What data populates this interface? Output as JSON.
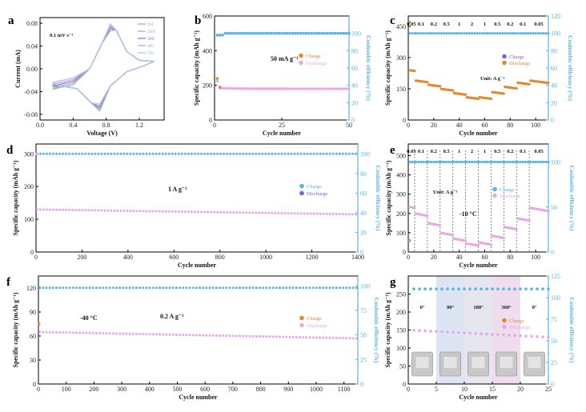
{
  "figure_panels": [
    "a",
    "b",
    "c",
    "d",
    "e",
    "f",
    "g"
  ],
  "chart_data": [
    {
      "id": "a",
      "type": "line",
      "xlabel": "Voltage (V)",
      "ylabel": "Current (mA)",
      "xlim": [
        0,
        1.5
      ],
      "ylim": [
        -0.09,
        0.09
      ],
      "xticks": [
        "0.0",
        "0.4",
        "0.8",
        "1.2"
      ],
      "yticks": [
        "-0.08",
        "-0.04",
        "0.00",
        "0.04",
        "0.08"
      ],
      "annotation": "0.1 mV s⁻¹",
      "legend": [
        "1st",
        "2nd",
        "3rd",
        "4th",
        "5th"
      ],
      "colors": [
        "#7ec8a0",
        "#b9a8dc",
        "#7a89c9",
        "#d6a0d8",
        "#a8c8e8"
      ]
    },
    {
      "id": "b",
      "type": "scatter",
      "xlabel": "Cycle number",
      "ylabel": "Specific capacity (mAh g⁻¹)",
      "y2label": "Coulombic efficiency (%)",
      "xlim": [
        0,
        50
      ],
      "ylim": [
        0,
        600
      ],
      "y2lim": [
        0,
        120
      ],
      "xticks": [
        "0",
        "25",
        "50"
      ],
      "yticks": [
        "0",
        "200",
        "400",
        "600"
      ],
      "y2ticks": [
        "0",
        "20",
        "40",
        "60",
        "80",
        "100"
      ],
      "annotation": "50 mA g⁻¹",
      "legend": [
        "Charge",
        "Discharge"
      ],
      "charge_first": 240,
      "charge_plateau": 185,
      "discharge_first": 225,
      "discharge_plateau": 180,
      "efficiency": 100
    },
    {
      "id": "c",
      "type": "scatter",
      "xlabel": "Cycle number",
      "ylabel": "Specific capacity (mAh g⁻¹)",
      "y2label": "Coulombic efficiency (%)",
      "xlim": [
        0,
        110
      ],
      "ylim": [
        0,
        500
      ],
      "y2lim": [
        0,
        120
      ],
      "xticks": [
        "0",
        "20",
        "40",
        "60",
        "80",
        "100"
      ],
      "yticks": [
        "0",
        "150",
        "300",
        "450"
      ],
      "y2ticks": [
        "0",
        "20",
        "40",
        "60",
        "80",
        "100",
        "120"
      ],
      "rates": [
        "0.05",
        "0.1",
        "0.2",
        "0.5",
        "1",
        "2",
        "1",
        "0.5",
        "0.2",
        "0.1",
        "0.05"
      ],
      "unit": "Unit: A g⁻¹",
      "legend": [
        "Charge",
        "Discharge"
      ],
      "steps": [
        {
          "from": 0,
          "to": 5,
          "value": 240
        },
        {
          "from": 5,
          "to": 15,
          "value": 190
        },
        {
          "from": 15,
          "to": 25,
          "value": 170
        },
        {
          "from": 25,
          "to": 35,
          "value": 150
        },
        {
          "from": 35,
          "to": 45,
          "value": 130
        },
        {
          "from": 45,
          "to": 55,
          "value": 110
        },
        {
          "from": 55,
          "to": 65,
          "value": 110
        },
        {
          "from": 65,
          "to": 75,
          "value": 135
        },
        {
          "from": 75,
          "to": 85,
          "value": 160
        },
        {
          "from": 85,
          "to": 95,
          "value": 180
        },
        {
          "from": 95,
          "to": 110,
          "value": 190
        }
      ],
      "efficiency": 100
    },
    {
      "id": "d",
      "type": "scatter",
      "xlabel": "Cycle number",
      "ylabel": "Specific capacity (mAh g⁻¹)",
      "y2label": "Coulombic efficiency (%)",
      "xlim": [
        0,
        1400
      ],
      "ylim": [
        0,
        330
      ],
      "y2lim": [
        0,
        110
      ],
      "xticks": [
        "0",
        "200",
        "400",
        "600",
        "800",
        "1000",
        "1200",
        "1400"
      ],
      "yticks": [
        "0",
        "100",
        "200",
        "300"
      ],
      "y2ticks": [
        "0",
        "20",
        "40",
        "60",
        "80",
        "100"
      ],
      "annotation": "1 A g⁻¹",
      "legend": [
        "Charge",
        "Discharge"
      ],
      "first": 300,
      "start": 130,
      "end": 115,
      "efficiency": 100
    },
    {
      "id": "e",
      "type": "scatter",
      "xlabel": "Cycle number",
      "ylabel": "Specific capacity (mAh g⁻¹)",
      "y2label": "Coulombic efficiency (%)",
      "xlim": [
        0,
        110
      ],
      "ylim": [
        0,
        560
      ],
      "y2lim": [
        0,
        120
      ],
      "xticks": [
        "0",
        "20",
        "40",
        "60",
        "80",
        "100"
      ],
      "yticks": [
        "0",
        "100",
        "200",
        "300",
        "400",
        "500"
      ],
      "y2ticks": [
        "0",
        "50",
        "100"
      ],
      "rates": [
        "0.05",
        "0.1",
        "0.2",
        "0.5",
        "1",
        "2",
        "1",
        "0.5",
        "0.2",
        "0.1",
        "0.05"
      ],
      "unit": "Unit: A g⁻¹",
      "annotation": "-10 °C",
      "legend": [
        "Charge",
        "Discharge"
      ],
      "steps": [
        {
          "from": 0,
          "to": 5,
          "value": 235
        },
        {
          "from": 5,
          "to": 15,
          "value": 200
        },
        {
          "from": 15,
          "to": 25,
          "value": 150
        },
        {
          "from": 25,
          "to": 35,
          "value": 100
        },
        {
          "from": 35,
          "to": 45,
          "value": 70
        },
        {
          "from": 45,
          "to": 55,
          "value": 45
        },
        {
          "from": 55,
          "to": 65,
          "value": 50
        },
        {
          "from": 65,
          "to": 75,
          "value": 85
        },
        {
          "from": 75,
          "to": 85,
          "value": 130
        },
        {
          "from": 85,
          "to": 95,
          "value": 175
        },
        {
          "from": 95,
          "to": 110,
          "value": 230
        }
      ],
      "efficiency": 100
    },
    {
      "id": "f",
      "type": "scatter",
      "xlabel": "Cycle number",
      "ylabel": "Specific capacity (mAh g⁻¹)",
      "y2label": "Coulombic efficiency (%)",
      "xlim": [
        0,
        1150
      ],
      "ylim": [
        0,
        135
      ],
      "y2lim": [
        0,
        110
      ],
      "xticks": [
        "0",
        "100",
        "200",
        "300",
        "400",
        "500",
        "600",
        "700",
        "800",
        "900",
        "1000",
        "1100"
      ],
      "yticks": [
        "0",
        "30",
        "60",
        "90",
        "120"
      ],
      "y2ticks": [
        "0",
        "25",
        "50",
        "75",
        "100"
      ],
      "annotation1": "-40 °C",
      "annotation2": "0.2 A g⁻¹",
      "legend": [
        "Charge",
        "Discharge"
      ],
      "first": 75,
      "start": 65,
      "end": 57,
      "efficiency": 98
    },
    {
      "id": "g",
      "type": "scatter",
      "xlabel": "Cycle number",
      "ylabel": "Specific capacity (mAh g⁻¹)",
      "y2label": "Coulombic efficiency (%)",
      "xlim": [
        0,
        25
      ],
      "ylim": [
        0,
        300
      ],
      "y2lim": [
        0,
        125
      ],
      "xticks": [
        "0",
        "5",
        "10",
        "15",
        "20",
        "25"
      ],
      "yticks": [
        "0",
        "50",
        "100",
        "150",
        "200",
        "250"
      ],
      "y2ticks": [
        "0",
        "25",
        "50",
        "75",
        "100",
        "125"
      ],
      "angles": [
        "0°",
        "90°",
        "180°",
        "360°",
        "0°"
      ],
      "legend": [
        "Charge",
        "Discharge"
      ],
      "charge": 150,
      "discharge": 145,
      "end": 130,
      "efficiency": 110
    }
  ]
}
